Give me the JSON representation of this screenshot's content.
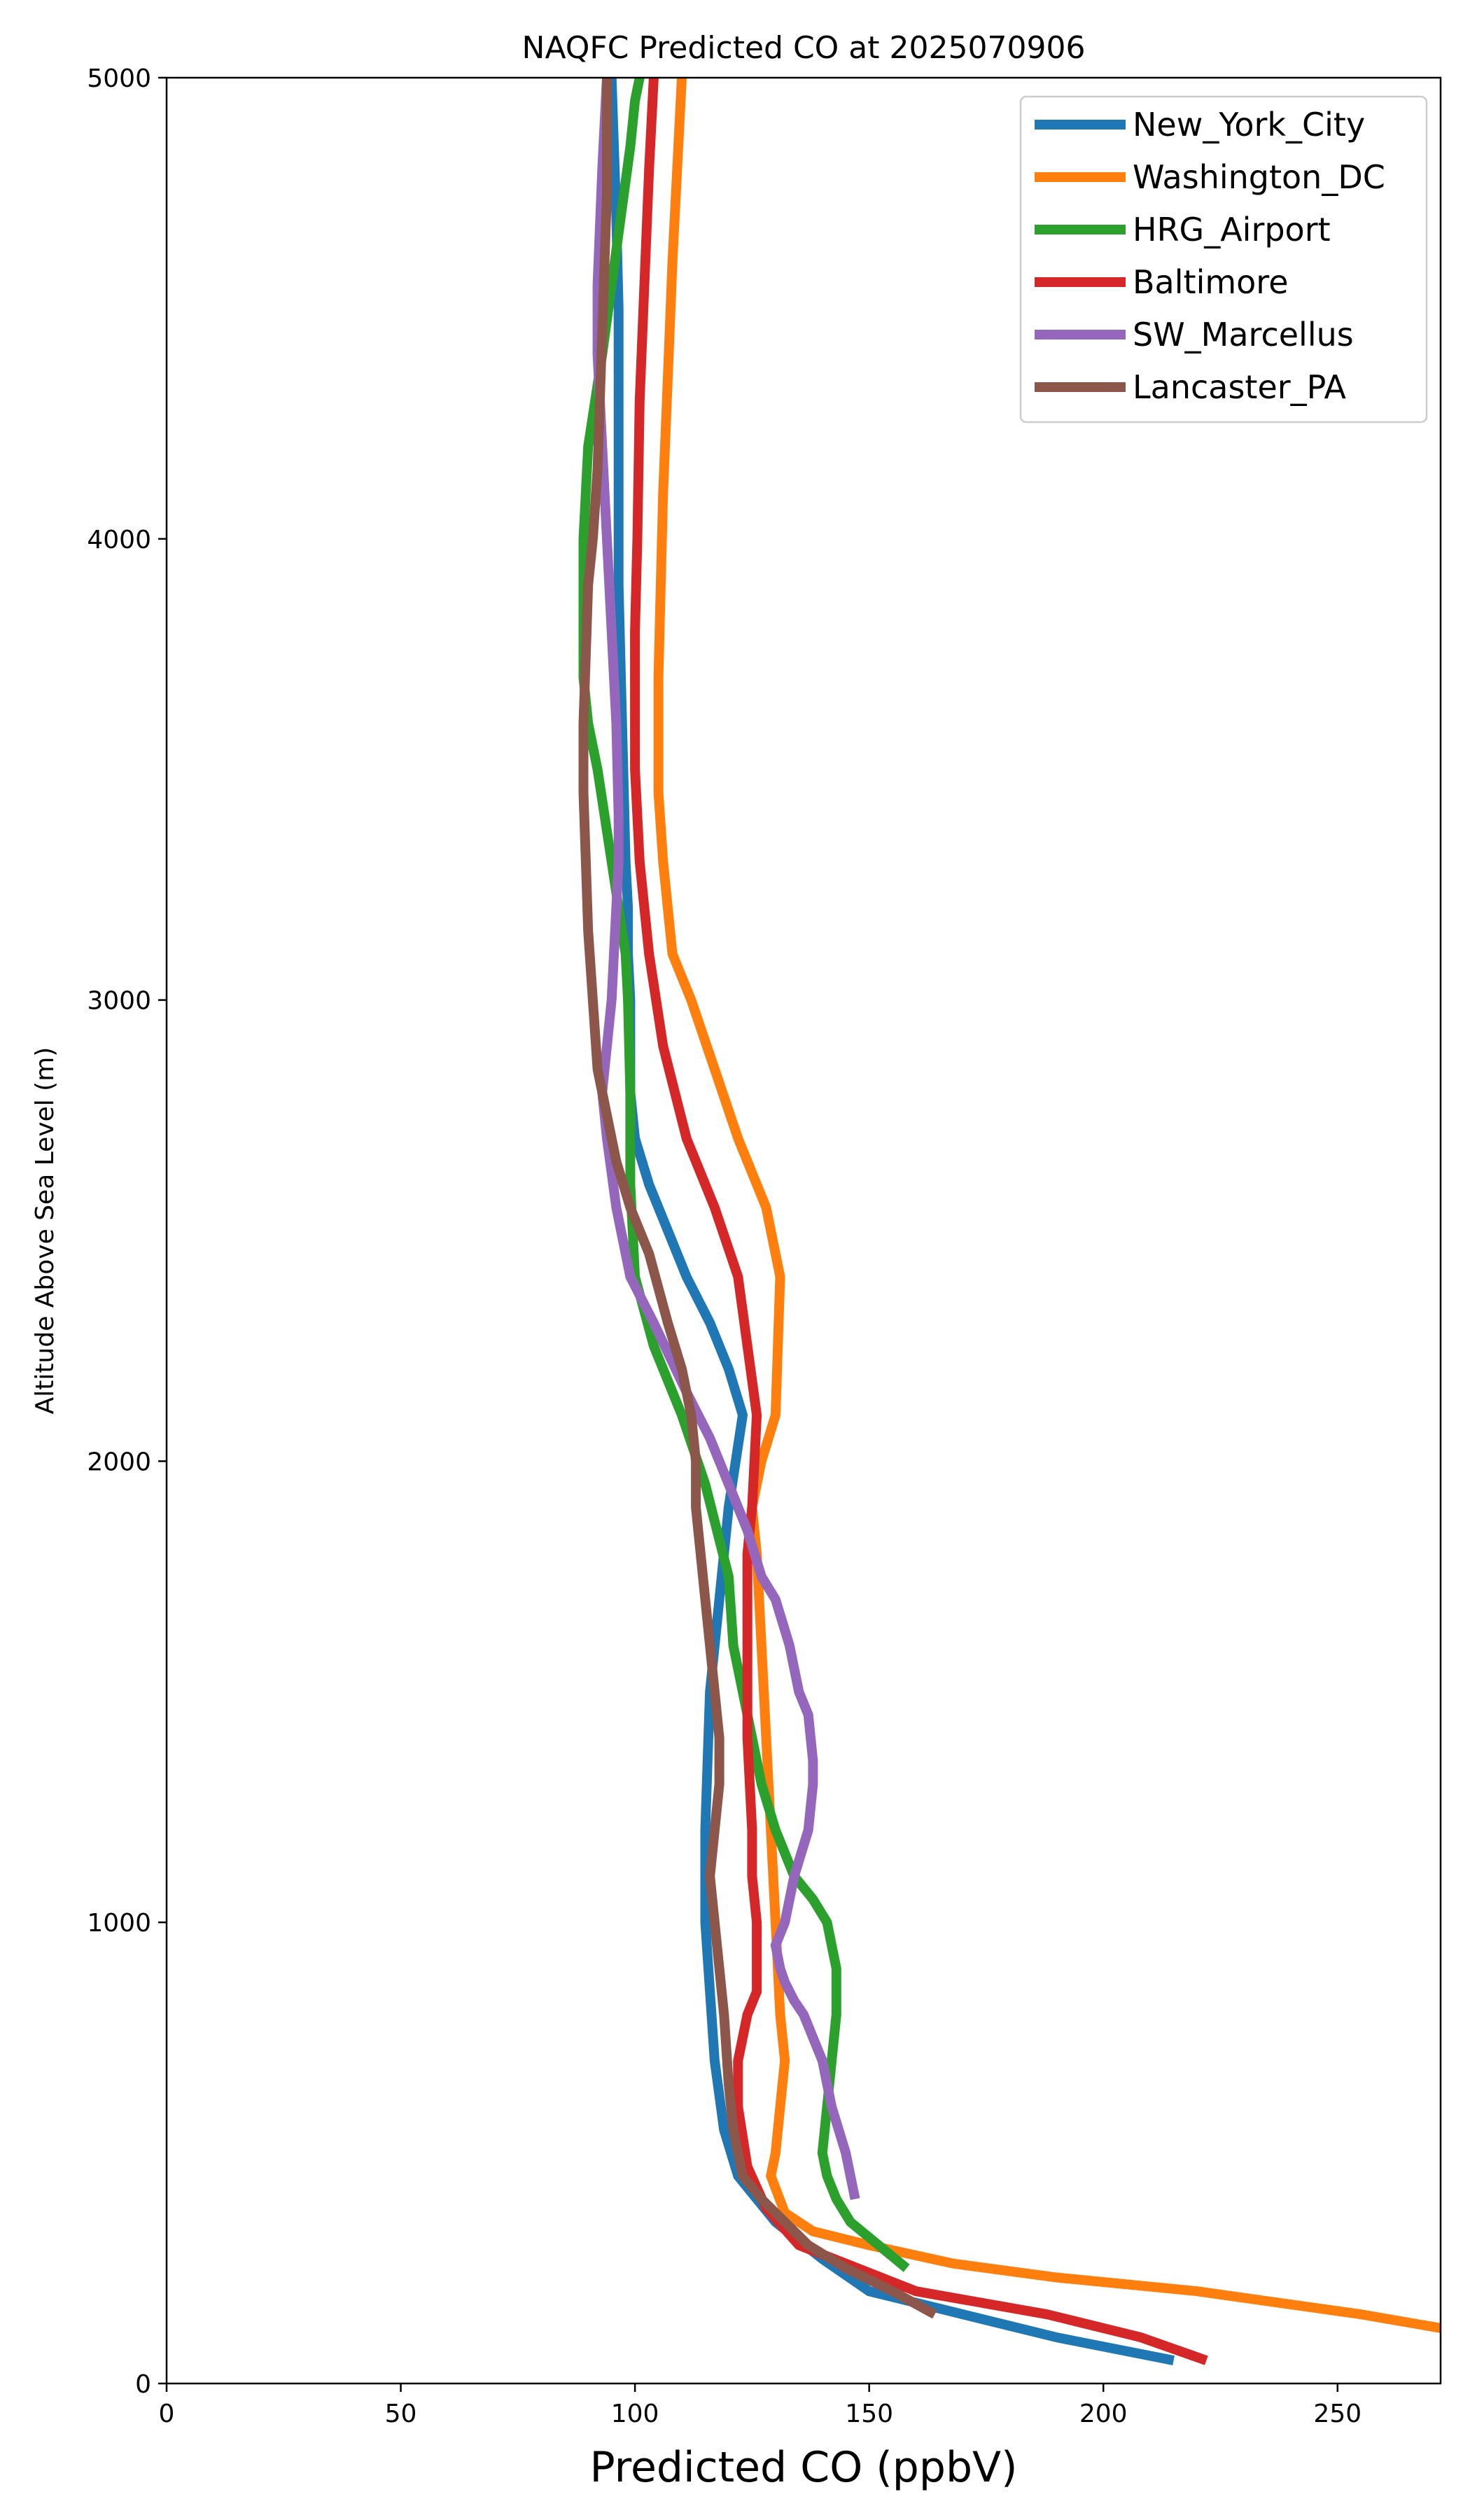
{
  "chart_data": {
    "type": "line",
    "title": "NAQFC Predicted CO at 2025070906",
    "xlabel": "Predicted CO (ppbV)",
    "ylabel": "Altitude Above Sea Level (m)",
    "xlim": [
      0,
      272
    ],
    "ylim": [
      0,
      5000
    ],
    "xticks": [
      0,
      50,
      100,
      150,
      200,
      250
    ],
    "yticks": [
      0,
      1000,
      2000,
      3000,
      4000,
      5000
    ],
    "grid": false,
    "legend_position": "top-right",
    "series": [
      {
        "name": "New_York_City",
        "color": "#1f77b4",
        "x": [
          215,
          190,
          170,
          150,
          140,
          130,
          122,
          119,
          117,
          116,
          115,
          115,
          115.5,
          116,
          117,
          118,
          119,
          120,
          121.5,
          123,
          120,
          116,
          111,
          107,
          103,
          100,
          99,
          99,
          99,
          98.5,
          98.5,
          98,
          97.5,
          97,
          96.5,
          96.5,
          96.5,
          96.5,
          96,
          95
        ],
        "y": [
          50,
          100,
          150,
          200,
          270,
          350,
          450,
          550,
          700,
          850,
          1000,
          1200,
          1350,
          1500,
          1600,
          1700,
          1800,
          1900,
          2000,
          2100,
          2200,
          2300,
          2400,
          2500,
          2600,
          2700,
          2800,
          2900,
          3000,
          3100,
          3200,
          3300,
          3500,
          3700,
          3900,
          4100,
          4300,
          4500,
          4700,
          5000
        ]
      },
      {
        "name": "Washington_DC",
        "color": "#ff7f0e",
        "x": [
          272,
          255,
          220,
          190,
          168,
          150,
          138,
          132,
          129,
          130,
          131,
          132,
          131,
          130,
          129,
          128,
          127,
          126,
          125,
          127,
          130,
          131,
          128,
          122,
          117,
          112,
          108,
          106,
          105,
          105,
          105.5,
          106,
          107,
          108,
          109,
          110
        ],
        "y": [
          120,
          150,
          200,
          230,
          260,
          300,
          330,
          370,
          450,
          500,
          600,
          700,
          800,
          1000,
          1200,
          1400,
          1600,
          1800,
          1900,
          2000,
          2100,
          2400,
          2550,
          2700,
          2850,
          3000,
          3100,
          3300,
          3450,
          3700,
          3900,
          4100,
          4350,
          4600,
          4800,
          5000
        ]
      },
      {
        "name": "HRG_Airport",
        "color": "#2ca02c",
        "x": [
          158,
          152,
          146,
          143,
          141,
          140,
          141,
          142,
          143,
          143,
          142,
          141,
          138,
          134,
          130,
          127,
          125,
          123,
          121,
          120,
          115,
          110,
          104,
          100,
          99,
          99,
          98.5,
          98,
          95,
          92,
          90,
          89,
          89,
          89,
          90,
          93,
          95,
          97,
          99,
          100,
          101
        ],
        "y": [
          250,
          300,
          350,
          400,
          450,
          500,
          600,
          700,
          800,
          900,
          950,
          1000,
          1050,
          1100,
          1200,
          1300,
          1400,
          1500,
          1600,
          1750,
          1950,
          2100,
          2250,
          2400,
          2600,
          2800,
          3000,
          3100,
          3300,
          3500,
          3600,
          3700,
          3800,
          4000,
          4200,
          4400,
          4550,
          4700,
          4850,
          4950,
          5000
        ]
      },
      {
        "name": "Baltimore",
        "color": "#d62728",
        "x": [
          222,
          208,
          188,
          160,
          145,
          135,
          128,
          124,
          122,
          122,
          124,
          126,
          126,
          126,
          125,
          125,
          124,
          124,
          124,
          124,
          125,
          126,
          122,
          117,
          111,
          106,
          103,
          101,
          100,
          100,
          100.5,
          101,
          102,
          103,
          104
        ],
        "y": [
          50,
          100,
          150,
          200,
          260,
          300,
          380,
          470,
          600,
          700,
          800,
          850,
          900,
          1000,
          1100,
          1200,
          1400,
          1600,
          1700,
          1800,
          1900,
          2100,
          2400,
          2550,
          2700,
          2900,
          3100,
          3300,
          3500,
          3800,
          4000,
          4300,
          4550,
          4800,
          5000
        ]
      },
      {
        "name": "SW_Marcellus",
        "color": "#9467bd",
        "x": [
          147,
          145,
          142,
          140,
          138,
          136,
          134,
          132,
          131,
          130,
          132,
          134,
          137,
          138,
          138,
          137,
          135,
          133,
          130,
          127,
          124,
          120,
          116,
          111,
          104,
          99,
          96,
          94,
          93,
          94,
          95,
          96,
          96.5,
          96.5,
          96,
          95,
          94,
          93,
          92,
          92,
          93,
          94
        ],
        "y": [
          400,
          500,
          600,
          700,
          750,
          800,
          830,
          870,
          900,
          950,
          1000,
          1100,
          1200,
          1300,
          1350,
          1450,
          1500,
          1600,
          1700,
          1750,
          1850,
          1950,
          2050,
          2150,
          2300,
          2400,
          2550,
          2700,
          2800,
          2900,
          3000,
          3200,
          3300,
          3400,
          3600,
          3800,
          4000,
          4200,
          4400,
          4550,
          4800,
          5000
        ]
      },
      {
        "name": "Lancaster_PA",
        "color": "#8c564b",
        "x": [
          164,
          155,
          145,
          137,
          132,
          127,
          123,
          121,
          120,
          119,
          118,
          117,
          116,
          117,
          118,
          118,
          117,
          116,
          115,
          114,
          113,
          113,
          112,
          110,
          107,
          103,
          99,
          96,
          94,
          92,
          91,
          90,
          89.5,
          89,
          89,
          89.5,
          90,
          91,
          92,
          92.5,
          93,
          93.5,
          94,
          94,
          94
        ],
        "y": [
          150,
          200,
          250,
          300,
          350,
          400,
          450,
          550,
          650,
          800,
          900,
          1000,
          1100,
          1200,
          1300,
          1400,
          1500,
          1600,
          1700,
          1800,
          1900,
          2000,
          2100,
          2200,
          2300,
          2450,
          2550,
          2650,
          2750,
          2850,
          3000,
          3150,
          3300,
          3450,
          3600,
          3750,
          3900,
          4000,
          4150,
          4300,
          4450,
          4600,
          4750,
          4900,
          5000
        ]
      }
    ]
  }
}
